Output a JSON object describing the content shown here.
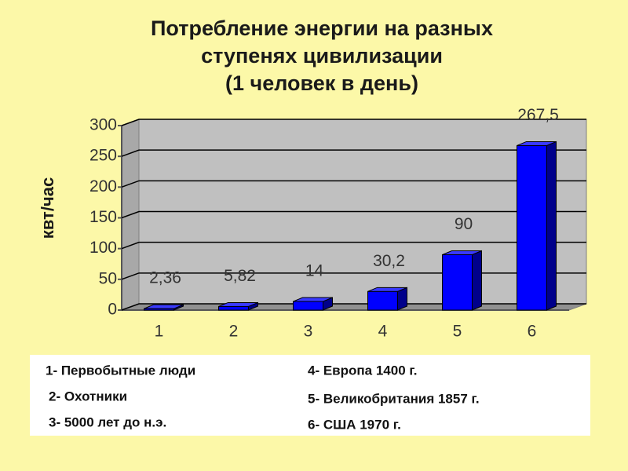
{
  "chart_data": {
    "type": "bar",
    "title": [
      "Потребление энергии на разных",
      "ступенях цивилизации",
      "(1 человек в день)"
    ],
    "y_label": "квт/час",
    "categories": [
      "1",
      "2",
      "3",
      "4",
      "5",
      "6"
    ],
    "values": [
      2.36,
      5.82,
      14,
      30.2,
      90,
      267.5
    ],
    "value_labels": [
      "2,36",
      "5,82",
      "14",
      "30,2",
      "90",
      "267,5"
    ],
    "color": "#0000ff",
    "ylim": [
      0,
      300
    ],
    "yticks": [
      0,
      50,
      100,
      150,
      200,
      250,
      300
    ],
    "grid": true,
    "notes": [
      "1- Первобытные люди",
      "2- Охотники",
      "3- 5000 лет до н.э.",
      "4- Европа 1400 г.",
      "5- Великобритания 1857 г.",
      "6- США 1970 г."
    ]
  }
}
